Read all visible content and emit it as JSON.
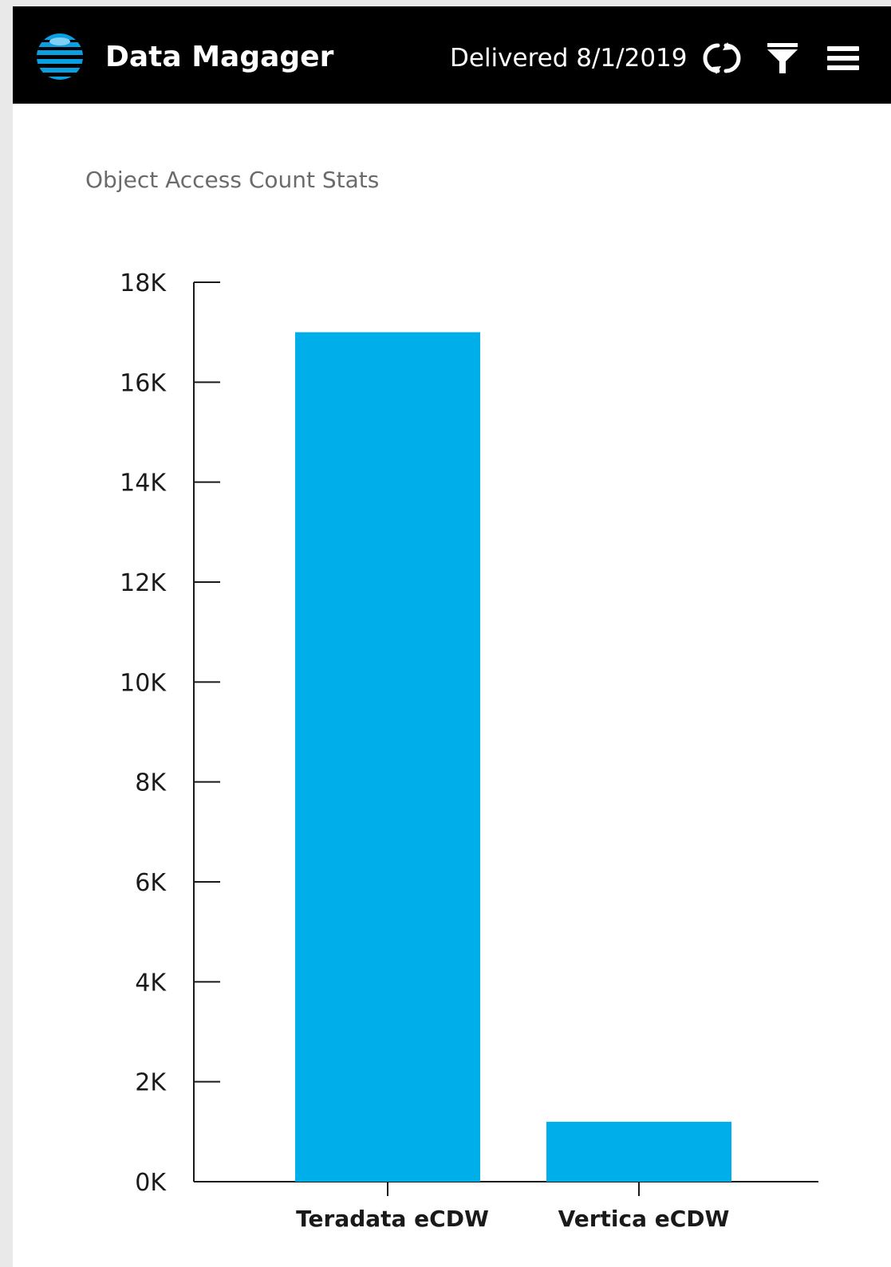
{
  "header": {
    "app_title": "Data Magager",
    "delivered_text": "Delivered 8/1/2019",
    "icons": [
      "att-globe-icon",
      "refresh-icon",
      "filter-icon",
      "menu-icon"
    ]
  },
  "colors": {
    "bar": "#00AEEA",
    "header_bg": "#000000",
    "logo_blue": "#0A9FE3"
  },
  "chart_data": {
    "type": "bar",
    "title": "Object Access Count Stats",
    "categories": [
      "Teradata eCDW",
      "Vertica eCDW"
    ],
    "values": [
      17000,
      1200
    ],
    "ylim": [
      0,
      18000
    ],
    "yticks": [
      0,
      2000,
      4000,
      6000,
      8000,
      10000,
      12000,
      14000,
      16000,
      18000
    ],
    "ytick_labels": [
      "0K",
      "2K",
      "4K",
      "6K",
      "8K",
      "10K",
      "12K",
      "14K",
      "16K",
      "18K"
    ],
    "xlabel": "",
    "ylabel": "",
    "grid": false,
    "legend": "none"
  }
}
